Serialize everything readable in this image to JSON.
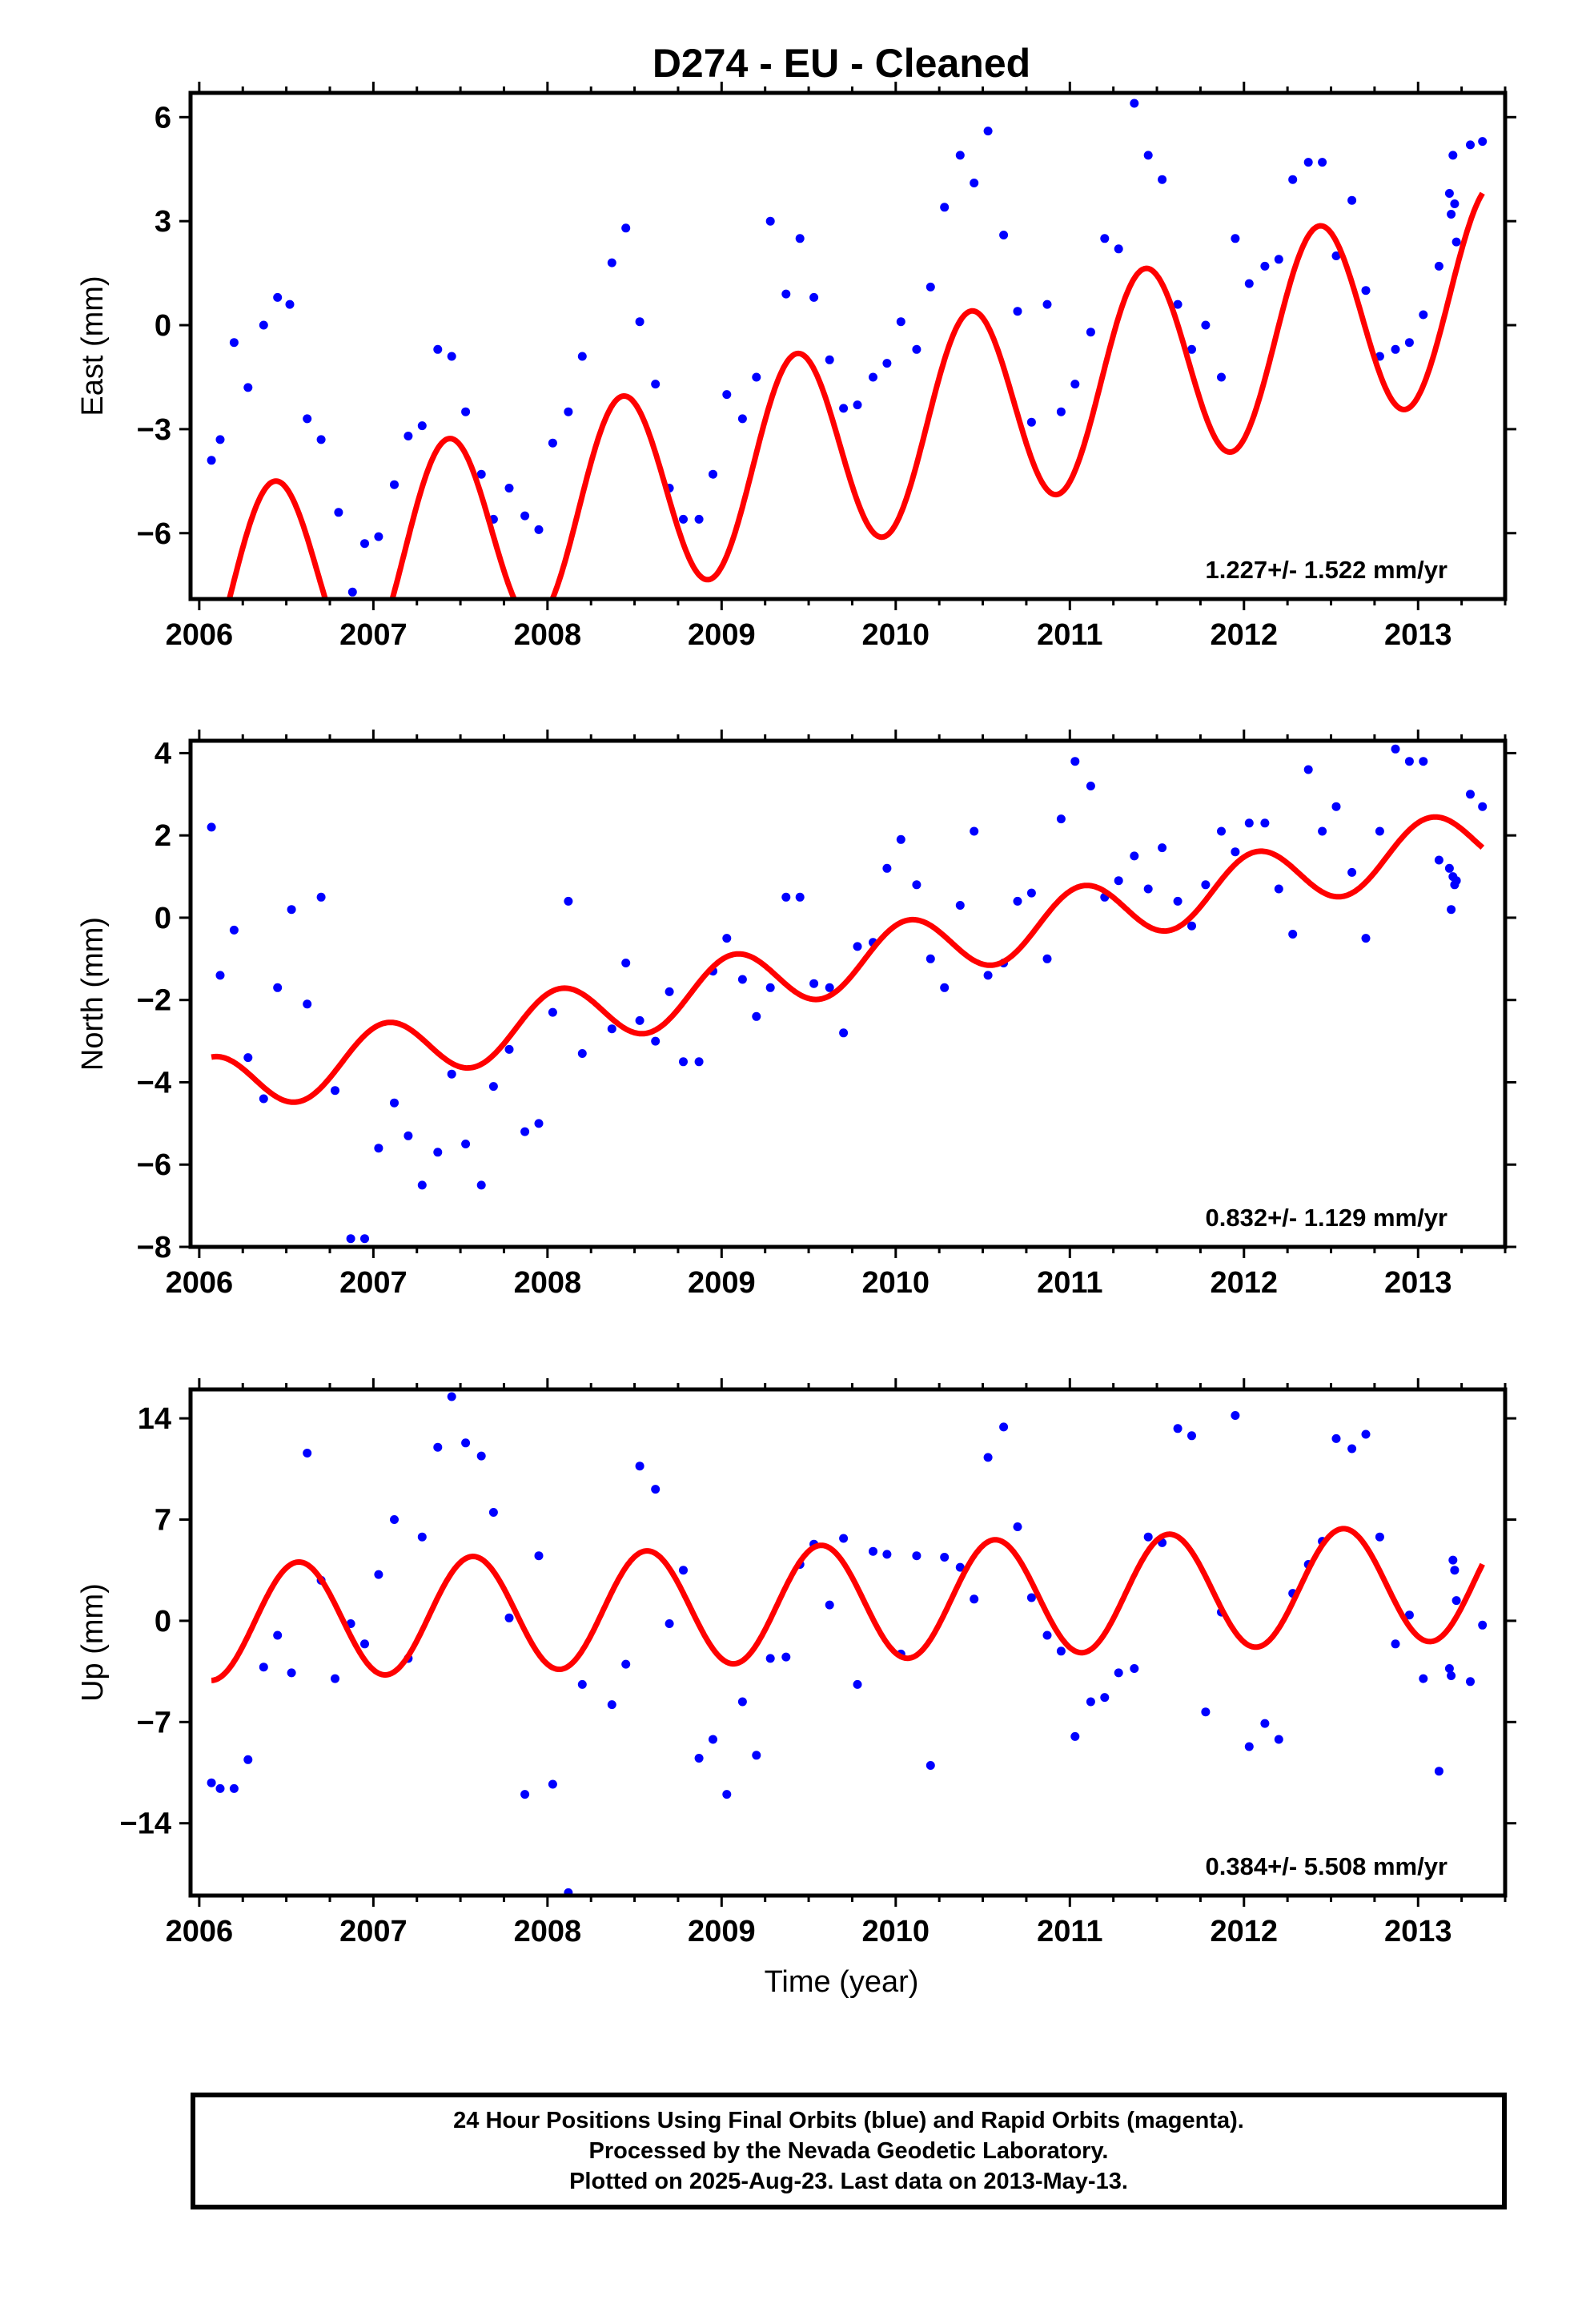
{
  "title": "D274  - EU - Cleaned",
  "colors": {
    "data": "#0000ff",
    "model": "#ff0000",
    "frame": "#000000"
  },
  "xlabel": "Time (year)",
  "x_ticks": [
    2006,
    2007,
    2008,
    2009,
    2010,
    2011,
    2012,
    2013
  ],
  "xlim": [
    2005.95,
    2013.5
  ],
  "footer": {
    "line1": "24 Hour Positions Using Final Orbits (blue) and Rapid Orbits (magenta).",
    "line2": "Processed by the Nevada Geodetic Laboratory.",
    "line3": "Plotted on 2025-Aug-23. Last data on 2013-May-13."
  },
  "chart_data": [
    {
      "type": "scatter",
      "ylabel": "East (mm)",
      "ylim": [
        -7.9,
        6.7
      ],
      "yticks": [
        -6,
        -3,
        0,
        3,
        6
      ],
      "rate_text": "1.227+/- 1.522 mm/yr",
      "model": {
        "type": "line",
        "trend": -4.3,
        "rate": 1.227,
        "amp": 2.95,
        "peak_phase": 0.43,
        "anchor": 2009.0
      },
      "x": [
        2006.07,
        2006.12,
        2006.2,
        2006.28,
        2006.37,
        2006.45,
        2006.52,
        2006.62,
        2006.7,
        2006.8,
        2006.88,
        2006.95,
        2007.03,
        2007.12,
        2007.2,
        2007.28,
        2007.37,
        2007.45,
        2007.53,
        2007.62,
        2007.69,
        2007.78,
        2007.87,
        2007.95,
        2008.03,
        2008.12,
        2008.2,
        2008.37,
        2008.45,
        2008.53,
        2008.62,
        2008.7,
        2008.78,
        2008.87,
        2008.95,
        2009.03,
        2009.12,
        2009.2,
        2009.28,
        2009.37,
        2009.45,
        2009.53,
        2009.62,
        2009.7,
        2009.78,
        2009.87,
        2009.95,
        2010.03,
        2010.12,
        2010.2,
        2010.28,
        2010.37,
        2010.45,
        2010.53,
        2010.62,
        2010.7,
        2010.78,
        2010.87,
        2010.95,
        2011.03,
        2011.12,
        2011.2,
        2011.28,
        2011.37,
        2011.45,
        2011.53,
        2011.62,
        2011.7,
        2011.78,
        2011.87,
        2011.95,
        2012.03,
        2012.12,
        2012.2,
        2012.28,
        2012.37,
        2012.45,
        2012.53,
        2012.62,
        2012.7,
        2012.78,
        2012.87,
        2012.95,
        2013.03,
        2013.12,
        2013.18,
        2013.19,
        2013.2,
        2013.21,
        2013.22,
        2013.3,
        2013.37
      ],
      "y": [
        -3.9,
        -3.3,
        -0.5,
        -1.8,
        0.0,
        0.8,
        0.6,
        -2.7,
        -3.3,
        -5.4,
        -7.7,
        -6.3,
        -6.1,
        -4.6,
        -3.2,
        -2.9,
        -0.7,
        -0.9,
        -2.5,
        -4.3,
        -5.6,
        -4.7,
        -5.5,
        -5.9,
        -3.4,
        -2.5,
        -0.9,
        1.8,
        2.8,
        0.1,
        -1.7,
        -4.7,
        -5.6,
        -5.6,
        -4.3,
        -2.0,
        -2.7,
        -1.5,
        3.0,
        0.9,
        2.5,
        0.8,
        -1.0,
        -2.4,
        -2.3,
        -1.5,
        -1.1,
        0.1,
        -0.7,
        1.1,
        3.4,
        4.9,
        4.1,
        5.6,
        2.6,
        0.4,
        -2.8,
        0.6,
        -2.5,
        -1.7,
        -0.2,
        2.5,
        2.2,
        6.4,
        4.9,
        4.2,
        0.6,
        -0.7,
        0.0,
        -1.5,
        2.5,
        1.2,
        1.7,
        1.9,
        4.2,
        4.7,
        4.7,
        2.0,
        3.6,
        1.0,
        -0.9,
        -0.7,
        -0.5,
        0.3,
        1.7,
        3.8,
        3.2,
        4.9,
        3.5,
        2.4,
        5.2,
        5.3
      ]
    },
    {
      "type": "scatter",
      "ylabel": "North (mm)",
      "ylim": [
        -8.0,
        4.3
      ],
      "yticks": [
        -8,
        -6,
        -4,
        -2,
        0,
        2,
        4
      ],
      "rate_text": "0.832+/- 1.129 mm/yr",
      "model": {
        "type": "line",
        "trend": -1.7,
        "rate": 0.832,
        "amp": 0.75,
        "peak_phase": 0.07,
        "anchor": 2009.0
      },
      "x": [
        2006.07,
        2006.12,
        2006.2,
        2006.28,
        2006.37,
        2006.45,
        2006.53,
        2006.62,
        2006.7,
        2006.78,
        2006.87,
        2006.95,
        2007.03,
        2007.12,
        2007.2,
        2007.28,
        2007.37,
        2007.45,
        2007.53,
        2007.62,
        2007.69,
        2007.78,
        2007.87,
        2007.95,
        2008.03,
        2008.12,
        2008.2,
        2008.37,
        2008.45,
        2008.53,
        2008.62,
        2008.7,
        2008.78,
        2008.87,
        2008.95,
        2009.03,
        2009.12,
        2009.2,
        2009.28,
        2009.37,
        2009.45,
        2009.53,
        2009.62,
        2009.7,
        2009.78,
        2009.87,
        2009.95,
        2010.03,
        2010.12,
        2010.2,
        2010.28,
        2010.37,
        2010.45,
        2010.53,
        2010.62,
        2010.7,
        2010.78,
        2010.87,
        2010.95,
        2011.03,
        2011.12,
        2011.2,
        2011.28,
        2011.37,
        2011.45,
        2011.53,
        2011.62,
        2011.7,
        2011.78,
        2011.87,
        2011.95,
        2012.03,
        2012.12,
        2012.2,
        2012.28,
        2012.37,
        2012.45,
        2012.53,
        2012.62,
        2012.7,
        2012.78,
        2012.87,
        2012.95,
        2013.03,
        2013.12,
        2013.18,
        2013.19,
        2013.2,
        2013.21,
        2013.22,
        2013.3,
        2013.37
      ],
      "y": [
        2.2,
        -1.4,
        -0.3,
        -3.4,
        -4.4,
        -1.7,
        0.2,
        -2.1,
        0.5,
        -4.2,
        -7.8,
        -7.8,
        -5.6,
        -4.5,
        -5.3,
        -6.5,
        -5.7,
        -3.8,
        -5.5,
        -6.5,
        -4.1,
        -3.2,
        -5.2,
        -5.0,
        -2.3,
        0.4,
        -3.3,
        -2.7,
        -1.1,
        -2.5,
        -3.0,
        -1.8,
        -3.5,
        -3.5,
        -1.3,
        -0.5,
        -1.5,
        -2.4,
        -1.7,
        0.5,
        0.5,
        -1.6,
        -1.7,
        -2.8,
        -0.7,
        -0.6,
        1.2,
        1.9,
        0.8,
        -1.0,
        -1.7,
        0.3,
        2.1,
        -1.4,
        -1.1,
        0.4,
        0.6,
        -1.0,
        2.4,
        3.8,
        3.2,
        0.5,
        0.9,
        1.5,
        0.7,
        1.7,
        0.4,
        -0.2,
        0.8,
        2.1,
        1.6,
        2.3,
        2.3,
        0.7,
        -0.4,
        3.6,
        2.1,
        2.7,
        1.1,
        -0.5,
        2.1,
        4.1,
        3.8,
        3.8,
        1.4,
        1.2,
        0.2,
        1.0,
        0.8,
        0.9,
        3.0,
        2.7
      ]
    },
    {
      "type": "scatter",
      "ylabel": "Up (mm)",
      "ylim": [
        -19.0,
        16.0
      ],
      "yticks": [
        -14,
        -7,
        0,
        7,
        14
      ],
      "rate_text": "0.384+/- 5.508 mm/yr",
      "model": {
        "type": "line",
        "trend": 1.0,
        "rate": 0.384,
        "amp": 4.0,
        "peak_phase": 0.57,
        "anchor": 2009.0
      },
      "x": [
        2006.07,
        2006.12,
        2006.2,
        2006.28,
        2006.37,
        2006.45,
        2006.53,
        2006.62,
        2006.7,
        2006.78,
        2006.87,
        2006.95,
        2007.03,
        2007.12,
        2007.2,
        2007.28,
        2007.37,
        2007.45,
        2007.53,
        2007.62,
        2007.69,
        2007.78,
        2007.87,
        2007.95,
        2008.03,
        2008.12,
        2008.2,
        2008.37,
        2008.45,
        2008.53,
        2008.62,
        2008.7,
        2008.78,
        2008.87,
        2008.95,
        2009.03,
        2009.12,
        2009.2,
        2009.28,
        2009.37,
        2009.45,
        2009.53,
        2009.62,
        2009.7,
        2009.78,
        2009.87,
        2009.95,
        2010.03,
        2010.12,
        2010.2,
        2010.28,
        2010.37,
        2010.45,
        2010.53,
        2010.62,
        2010.7,
        2010.78,
        2010.87,
        2010.95,
        2011.03,
        2011.12,
        2011.2,
        2011.28,
        2011.37,
        2011.45,
        2011.53,
        2011.62,
        2011.7,
        2011.78,
        2011.87,
        2011.95,
        2012.03,
        2012.12,
        2012.2,
        2012.28,
        2012.37,
        2012.45,
        2012.53,
        2012.62,
        2012.7,
        2012.78,
        2012.87,
        2012.95,
        2013.03,
        2013.12,
        2013.18,
        2013.19,
        2013.2,
        2013.21,
        2013.22,
        2013.3,
        2013.37
      ],
      "y": [
        -11.2,
        -11.6,
        -11.6,
        -9.6,
        -3.2,
        -1.0,
        -3.6,
        11.6,
        2.8,
        -4.0,
        -0.2,
        -1.6,
        3.2,
        7.0,
        -2.6,
        5.8,
        12.0,
        15.5,
        12.3,
        11.4,
        7.5,
        0.2,
        -12.0,
        4.5,
        -11.3,
        -18.8,
        -4.4,
        -5.8,
        -3.0,
        10.7,
        9.1,
        -0.2,
        3.5,
        -9.5,
        -8.2,
        -12.0,
        -5.6,
        -9.3,
        -2.6,
        -2.5,
        3.9,
        5.3,
        1.1,
        5.7,
        -4.4,
        4.8,
        4.6,
        -2.3,
        4.5,
        -10.0,
        4.4,
        3.7,
        1.5,
        11.3,
        13.4,
        6.5,
        1.6,
        -1.0,
        -2.1,
        -8.0,
        -5.6,
        -5.3,
        -3.6,
        -3.3,
        5.8,
        5.4,
        13.3,
        12.8,
        -6.3,
        0.6,
        14.2,
        -8.7,
        -7.1,
        -8.2,
        1.9,
        3.9,
        5.5,
        12.6,
        11.9,
        12.9,
        5.8,
        -1.6,
        0.4,
        -4.0,
        -10.4,
        -3.3,
        -3.8,
        4.2,
        3.5,
        1.4,
        -4.2,
        -0.3
      ]
    }
  ]
}
